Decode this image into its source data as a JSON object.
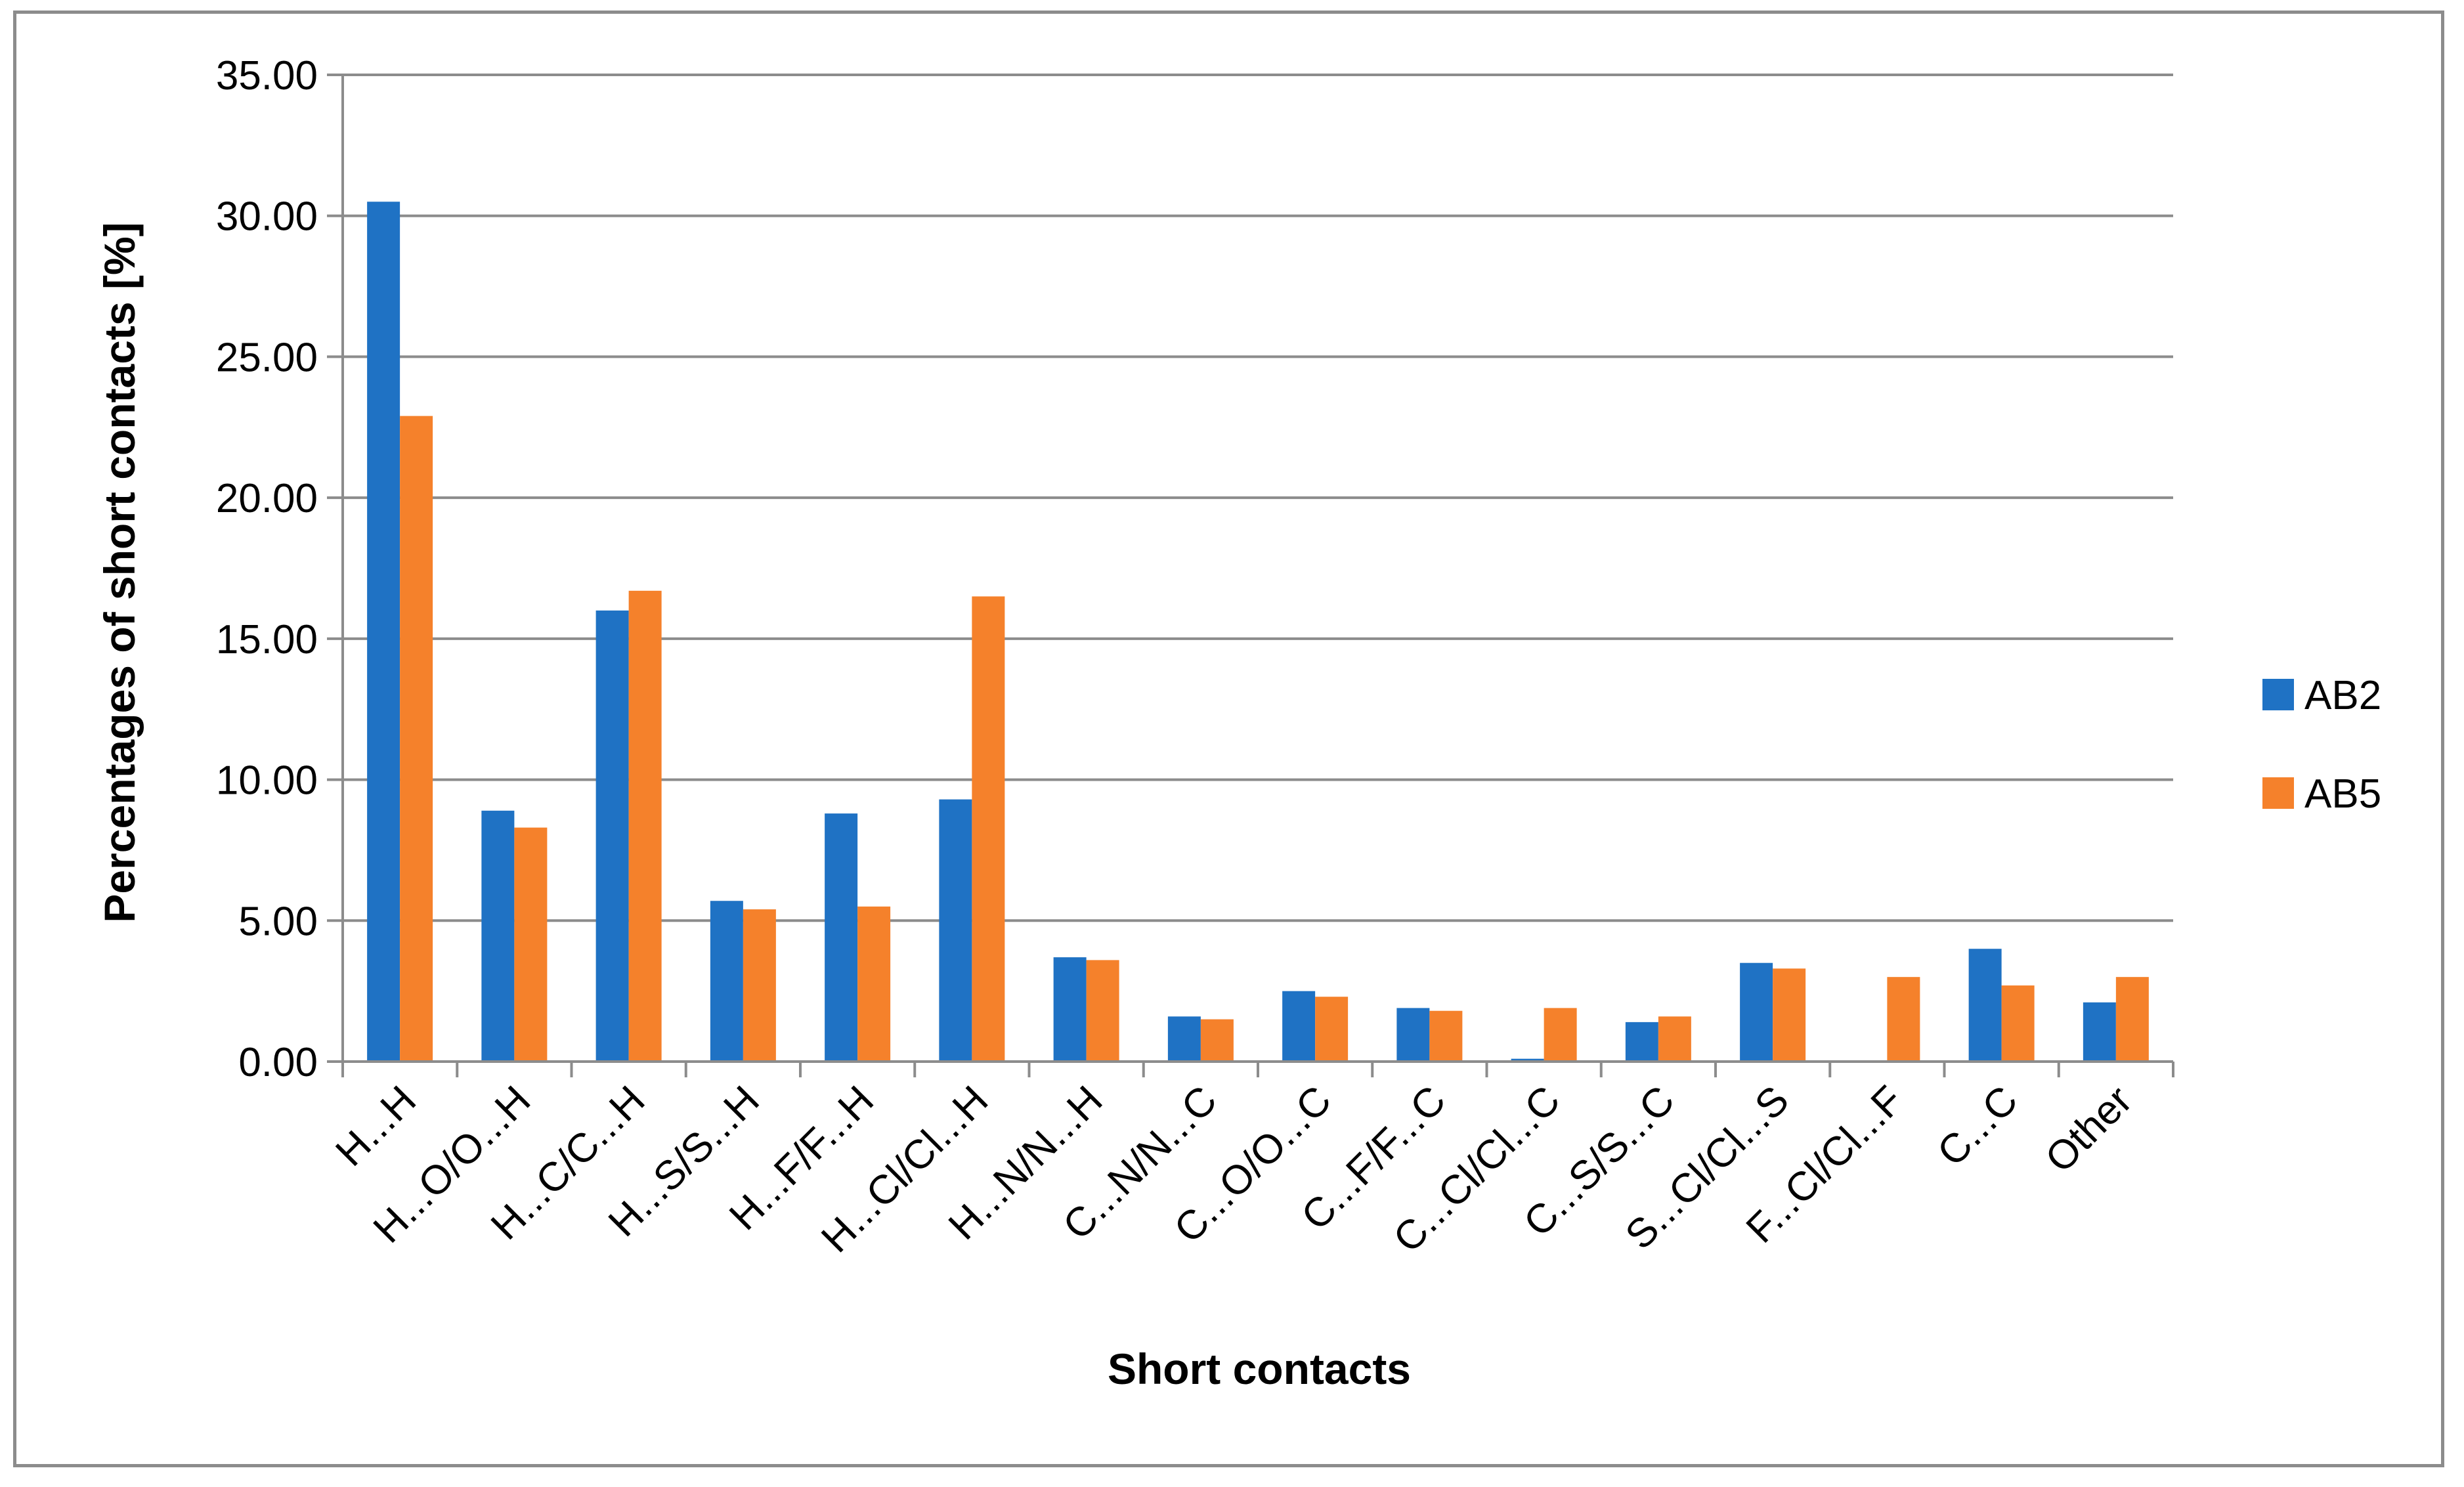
{
  "chart_data": {
    "type": "bar",
    "categories": [
      "H...H",
      "H...O/O...H",
      "H...C/C...H",
      "H...S/S...H",
      "H...F/F...H",
      "H...Cl/Cl...H",
      "H...N/N...H",
      "C...N/N...C",
      "C...O/O...C",
      "C...F/F...C",
      "C...Cl/Cl...C",
      "C...S/S...C",
      "S...Cl/Cl...S",
      "F...Cl/Cl...F",
      "C...C",
      "Other"
    ],
    "series": [
      {
        "name": "AB2",
        "color": "#1f72c4",
        "values": [
          30.5,
          8.9,
          16.0,
          5.7,
          8.8,
          9.3,
          3.7,
          1.6,
          2.5,
          1.9,
          0.1,
          1.4,
          3.5,
          0.0,
          4.0,
          2.1
        ]
      },
      {
        "name": "AB5",
        "color": "#f5812b",
        "values": [
          22.9,
          8.3,
          16.7,
          5.4,
          5.5,
          16.5,
          3.6,
          1.5,
          2.3,
          1.8,
          1.9,
          1.6,
          3.3,
          3.0,
          2.7,
          3.0
        ]
      }
    ],
    "yticks": [
      "0.00",
      "5.00",
      "10.00",
      "15.00",
      "20.00",
      "25.00",
      "30.00",
      "35.00"
    ],
    "ylim": [
      0,
      35
    ],
    "xlabel": "Short contacts",
    "ylabel": "Percentages of short contacts [%]",
    "grid": true,
    "legend_position": "right"
  }
}
